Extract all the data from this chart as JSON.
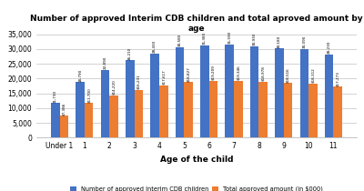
{
  "title": "Number of approved Interim CDB children and total aproved amount by\nage",
  "xlabel": "Age of the child",
  "categories": [
    "Under 1",
    "1",
    "2",
    "3",
    "4",
    "5",
    "6",
    "7",
    "8",
    "9",
    "10",
    "11"
  ],
  "blue_values": [
    11730,
    18790,
    22890,
    26210,
    28430,
    30580,
    31380,
    31590,
    30930,
    30180,
    30090,
    28230
  ],
  "orange_values": [
    7386,
    11700,
    14220,
    16231,
    17617,
    18827,
    19209,
    19346,
    18978,
    18516,
    18312,
    17273
  ],
  "blue_labels": [
    "11,730",
    "18,790",
    "22,890",
    "26,210",
    "28,430",
    "30,580",
    "31,380",
    "31,590",
    "30,930",
    "30,180",
    "30,090",
    "28,230"
  ],
  "orange_labels": [
    "$7,386",
    "$11,700",
    "$14,220",
    "$16,231",
    "$17,617",
    "$18,827",
    "$19,209",
    "$19,346",
    "$18,978",
    "$18,516",
    "$18,312",
    "$17,273"
  ],
  "blue_color": "#4472C4",
  "orange_color": "#ED7D31",
  "legend_blue": "Number of approved Interim CDB children",
  "legend_orange": "Total approved amount (in $000)",
  "ylim": [
    0,
    35000
  ],
  "yticks": [
    0,
    5000,
    10000,
    15000,
    20000,
    25000,
    30000,
    35000
  ],
  "background_color": "#ffffff",
  "grid_color": "#c0c0c0"
}
